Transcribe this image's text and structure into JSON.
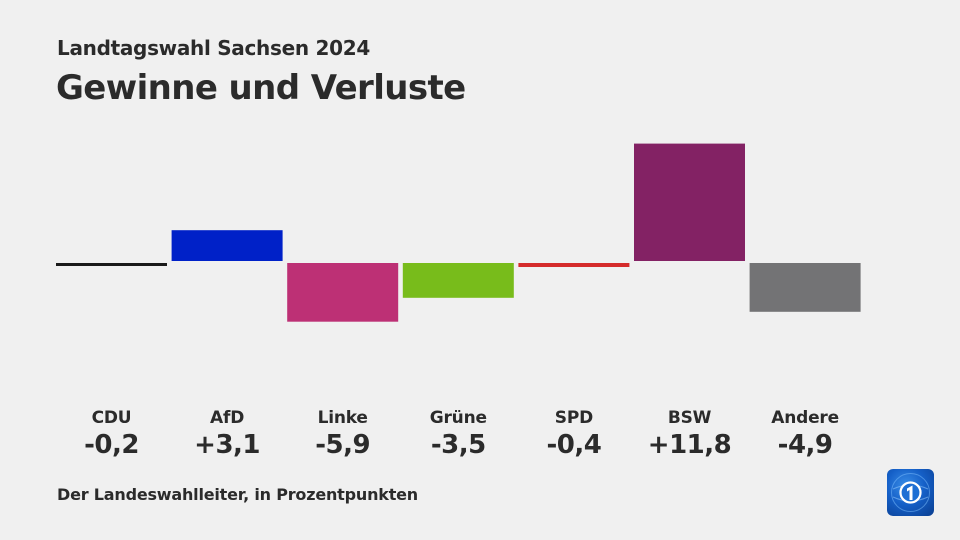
{
  "header": {
    "subtitle": "Landtagswahl Sachsen 2024",
    "title": "Gewinne und Verluste"
  },
  "footer": {
    "source": "Der Landeswahlleiter, in Prozentpunkten",
    "logo_icon": "tagesschau-logo-icon"
  },
  "chart_data": {
    "type": "bar",
    "title": "Gewinne und Verluste",
    "subtitle": "Landtagswahl Sachsen 2024",
    "xlabel": "",
    "ylabel": "Prozentpunkte",
    "unit": "Prozentpunkte",
    "grid": false,
    "categories": [
      "CDU",
      "AfD",
      "Linke",
      "Grüne",
      "SPD",
      "BSW",
      "Andere"
    ],
    "values": [
      -0.2,
      3.1,
      -5.9,
      -3.5,
      -0.4,
      11.8,
      -4.9
    ],
    "value_labels": [
      "-0,2",
      "+3,1",
      "-5,9",
      "-3,5",
      "-0,4",
      "+11,8",
      "-4,9"
    ],
    "colors": [
      "#1a1a1a",
      "#0021c8",
      "#bd3075",
      "#78bc1b",
      "#d52b2b",
      "#832264",
      "#737375"
    ],
    "source": "Der Landeswahlleiter, in Prozentpunkten"
  }
}
